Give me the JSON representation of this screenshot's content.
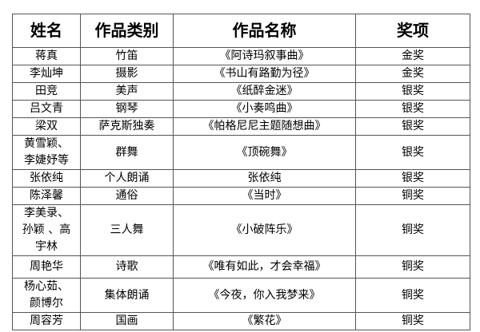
{
  "headers": [
    "姓名",
    "作品类别",
    "作品名称",
    "奖项"
  ],
  "rows": [
    {
      "name": "蒋真",
      "category": "竹笛",
      "title": "《阿诗玛叙事曲》",
      "award": "金奖"
    },
    {
      "name": "李灿坤",
      "category": "摄影",
      "title": "《书山有路勤为径》",
      "award": "金奖"
    },
    {
      "name": "田竞",
      "category": "美声",
      "title": "《纸醉金迷》",
      "award": "银奖"
    },
    {
      "name": "吕文青",
      "category": "钢琴",
      "title": "《小奏鸣曲》",
      "award": "银奖"
    },
    {
      "name": "梁双",
      "category": "萨克斯独奏",
      "title": "《帕格尼尼主题随想曲》",
      "award": "银奖"
    },
    {
      "name": "黄雪颖、李婕妤等",
      "category": "群舞",
      "title": "《顶碗舞》",
      "award": "银奖"
    },
    {
      "name": "张依纯",
      "category": "个人朗诵",
      "title": "张依纯",
      "award": "银奖"
    },
    {
      "name": "陈泽馨",
      "category": "通俗",
      "title": "《当时》",
      "award": "铜奖"
    },
    {
      "name": "李美录、孙颖 、高宇林",
      "category": "三人舞",
      "title": "《小破阵乐》",
      "award": "铜奖"
    },
    {
      "name": "周艳华",
      "category": "诗歌",
      "title": "《唯有如此，才会幸福》",
      "award": "铜奖"
    },
    {
      "name": "杨心茹、颜博尔",
      "category": "集体朗诵",
      "title": "《今夜，你入我梦来》",
      "award": "铜奖"
    },
    {
      "name": "周容芳",
      "category": "国画",
      "title": "《繁花》",
      "award": "铜奖"
    }
  ]
}
